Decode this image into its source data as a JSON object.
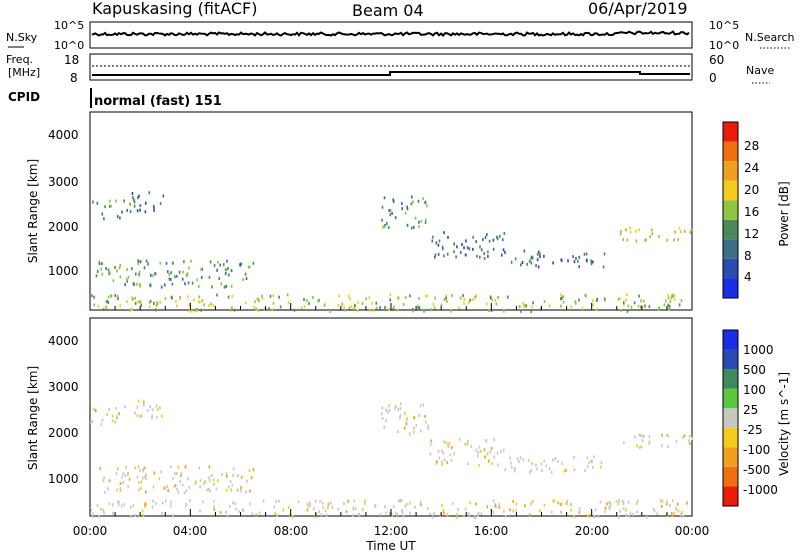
{
  "header": {
    "station": "Kapuskasing (fitACF)",
    "beam": "Beam 04",
    "date": "06/Apr/2019"
  },
  "noise_panel": {
    "left_label": "N.Sky",
    "right_label": "N.Search",
    "left_ticks": [
      "10^5",
      "10^0"
    ],
    "right_ticks": [
      "10^5",
      "10^0"
    ]
  },
  "freq_panel": {
    "left_label_1": "Freq.",
    "left_label_2": "[MHz]",
    "right_label": "Nave",
    "left_ticks": [
      "18",
      "8"
    ],
    "right_ticks": [
      "60",
      "0"
    ]
  },
  "cpid_panel": {
    "label": "CPID",
    "text": "normal (fast) 151"
  },
  "x_axis": {
    "title": "Time UT",
    "ticks": [
      "00:00",
      "04:00",
      "08:00",
      "12:00",
      "16:00",
      "20:00",
      "00:00"
    ]
  },
  "power_panel": {
    "ylabel": "Slant Range [km]",
    "yticks": [
      "4000",
      "3000",
      "2000",
      "1000"
    ],
    "colorbar_label": "Power [dB]",
    "colorbar_ticks": [
      "28",
      "24",
      "20",
      "16",
      "12",
      "8",
      "4"
    ],
    "colors": [
      "#1a2ee6",
      "#2a4bb0",
      "#3d6e8a",
      "#4a8a5a",
      "#8ec640",
      "#f4cc1d",
      "#f0a020",
      "#f07010",
      "#ea1c0c"
    ]
  },
  "velocity_panel": {
    "ylabel": "Slant Range [km]",
    "yticks": [
      "4000",
      "3000",
      "2000",
      "1000"
    ],
    "colorbar_label": "Velocity [m s^-1]",
    "colorbar_ticks": [
      "1000",
      "500",
      "100",
      "25",
      "-25",
      "-100",
      "-500",
      "-1000"
    ],
    "colors": [
      "#1a2ee6",
      "#2a4bb0",
      "#3d8a5a",
      "#5bc840",
      "#c8c8c0",
      "#f4cc1d",
      "#f0a020",
      "#f07010",
      "#ea1c0c"
    ]
  },
  "chart_data": {
    "type": "heatmap",
    "x_range_hours": [
      0,
      24
    ],
    "y_range_km": [
      180,
      4500
    ],
    "power_features": [
      {
        "t0": 0.0,
        "t1": 1.6,
        "r0": 2200,
        "r1": 2600,
        "level": 3
      },
      {
        "t0": 1.6,
        "t1": 3.0,
        "r0": 2350,
        "r1": 2800,
        "level": 2
      },
      {
        "t0": 0.0,
        "t1": 24.0,
        "r0": 180,
        "r1": 550,
        "level": 4
      },
      {
        "t0": 11.6,
        "t1": 13.5,
        "r0": 2000,
        "r1": 2700,
        "level": 3
      },
      {
        "t0": 13.5,
        "t1": 16.5,
        "r0": 1300,
        "r1": 1900,
        "level": 2
      },
      {
        "t0": 16.5,
        "t1": 20.5,
        "r0": 1150,
        "r1": 1500,
        "level": 2
      },
      {
        "t0": 21.0,
        "t1": 24.0,
        "r0": 1700,
        "r1": 2000,
        "level": 5
      },
      {
        "t0": 0.2,
        "t1": 6.5,
        "r0": 700,
        "r1": 1300,
        "level": 3
      }
    ]
  }
}
